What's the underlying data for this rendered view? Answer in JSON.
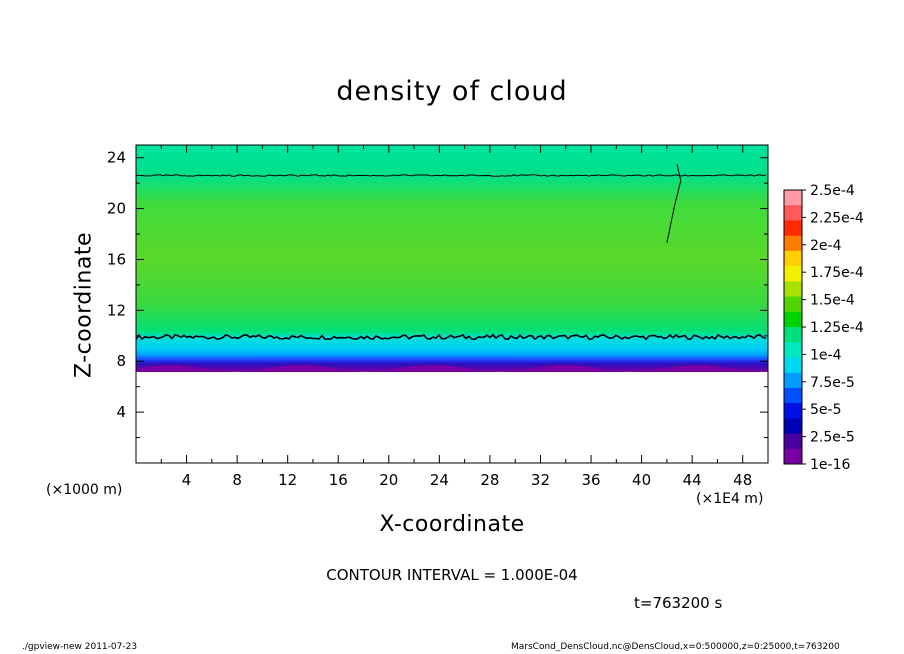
{
  "chart_data": {
    "type": "heatmap",
    "title": "density of cloud",
    "xlabel": "X-coordinate",
    "ylabel": "Z-coordinate",
    "x_unit": "(×1000 m)",
    "x_unit_secondary": "(×1E4 m)",
    "xlim": [
      0,
      50
    ],
    "ylim": [
      0,
      25
    ],
    "x_ticks": [
      "4",
      "8",
      "12",
      "16",
      "20",
      "24",
      "28",
      "32",
      "36",
      "40",
      "44",
      "48"
    ],
    "y_ticks": [
      "4",
      "8",
      "12",
      "16",
      "20",
      "24"
    ],
    "colorbar": {
      "labels": [
        "2.5e-4",
        "2.25e-4",
        "2e-4",
        "1.75e-4",
        "1.5e-4",
        "1.25e-4",
        "1e-4",
        "7.5e-5",
        "5e-5",
        "2.5e-5",
        "1e-16"
      ],
      "colors": [
        "#ff9aa6",
        "#ff5a5a",
        "#ff2a00",
        "#ff7c00",
        "#ffd000",
        "#f2f000",
        "#a8e000",
        "#52d400",
        "#00d400",
        "#00e07a",
        "#00e8c0",
        "#00d8f0",
        "#009cff",
        "#0050ff",
        "#0010e6",
        "#0000b4",
        "#4a00a0",
        "#7800a0"
      ]
    },
    "layers": [
      {
        "z_min": 0,
        "z_max": 7.2,
        "value": "none"
      },
      {
        "z_min": 7.2,
        "z_max": 8.0,
        "value": "1e-16 to 2.5e-5"
      },
      {
        "z_min": 8.0,
        "z_max": 9.9,
        "value": "2.5e-5 to 1e-4"
      },
      {
        "z_min": 9.9,
        "z_max": 22.6,
        "value": "1e-4 to 1.75e-4"
      },
      {
        "z_min": 22.6,
        "z_max": 25,
        "value": "1e-4 to 1.25e-4"
      }
    ],
    "contour_levels_z": [
      9.9,
      22.6
    ],
    "contour_interval": "CONTOUR INTERVAL = 1.000E-04",
    "time_label": "t=763200 s"
  },
  "footer": {
    "left": "./gpview-new   2011-07-23",
    "right": "MarsCond_DensCloud.nc@DensCloud,x=0:500000,z=0:25000,t=763200"
  }
}
